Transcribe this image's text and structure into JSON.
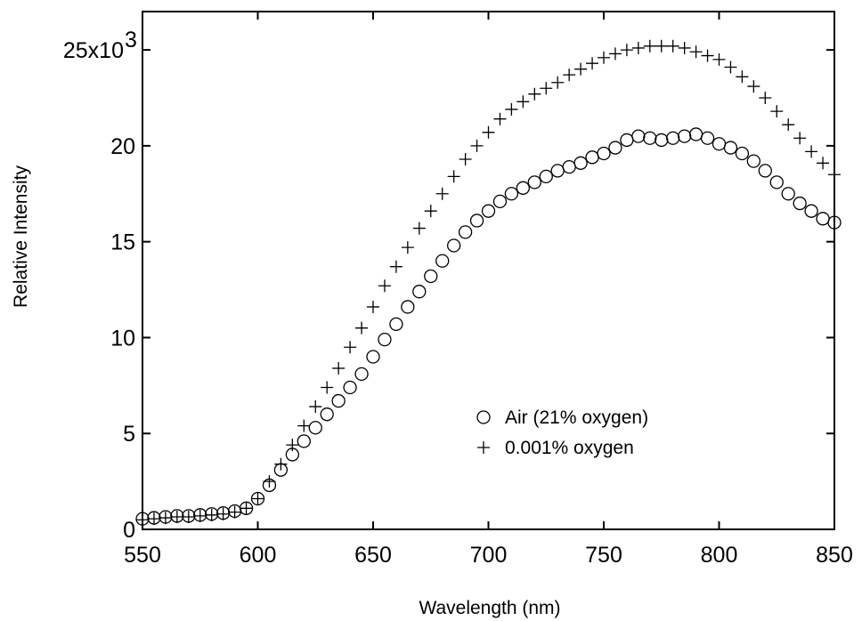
{
  "chart_data": {
    "type": "scatter",
    "title": "",
    "xlabel": "Wavelength (nm)",
    "ylabel": "Relative Intensity",
    "xlim": [
      550,
      850
    ],
    "ylim": [
      0,
      27000
    ],
    "grid": false,
    "legend_position": "lower-right inside plot",
    "x_ticks": [
      550,
      600,
      650,
      700,
      750,
      800,
      850
    ],
    "x_tick_labels": [
      "550",
      "600",
      "650",
      "700",
      "750",
      "800",
      "850"
    ],
    "y_ticks": [
      0,
      5000,
      10000,
      15000,
      20000,
      25000
    ],
    "y_tick_labels": [
      "0",
      "5",
      "10",
      "15",
      "20",
      "25x10"
    ],
    "y_tick_exponent": "3",
    "series": [
      {
        "name": "Air (21% oxygen)",
        "marker": "circle",
        "color": "#000000",
        "x": [
          550,
          555,
          560,
          565,
          570,
          575,
          580,
          585,
          590,
          595,
          600,
          605,
          610,
          615,
          620,
          625,
          630,
          635,
          640,
          645,
          650,
          655,
          660,
          665,
          670,
          675,
          680,
          685,
          690,
          695,
          700,
          705,
          710,
          715,
          720,
          725,
          730,
          735,
          740,
          745,
          750,
          755,
          760,
          765,
          770,
          775,
          780,
          785,
          790,
          795,
          800,
          805,
          810,
          815,
          820,
          825,
          830,
          835,
          840,
          845,
          850
        ],
        "y": [
          550,
          600,
          650,
          700,
          700,
          750,
          800,
          850,
          950,
          1100,
          1600,
          2300,
          3100,
          3900,
          4600,
          5300,
          6000,
          6700,
          7400,
          8100,
          9000,
          9900,
          10700,
          11600,
          12400,
          13200,
          14000,
          14800,
          15500,
          16100,
          16600,
          17100,
          17500,
          17800,
          18100,
          18400,
          18700,
          18900,
          19100,
          19400,
          19600,
          19900,
          20300,
          20500,
          20400,
          20300,
          20400,
          20500,
          20600,
          20400,
          20100,
          19900,
          19600,
          19200,
          18700,
          18100,
          17500,
          17000,
          16600,
          16200,
          16000
        ]
      },
      {
        "name": "0.001% oxygen",
        "marker": "plus",
        "color": "#000000",
        "x": [
          550,
          555,
          560,
          565,
          570,
          575,
          580,
          585,
          590,
          595,
          600,
          605,
          610,
          615,
          620,
          625,
          630,
          635,
          640,
          645,
          650,
          655,
          660,
          665,
          670,
          675,
          680,
          685,
          690,
          695,
          700,
          705,
          710,
          715,
          720,
          725,
          730,
          735,
          740,
          745,
          750,
          755,
          760,
          765,
          770,
          775,
          780,
          785,
          790,
          795,
          800,
          805,
          810,
          815,
          820,
          825,
          830,
          835,
          840,
          845,
          850
        ],
        "y": [
          500,
          550,
          600,
          650,
          650,
          700,
          750,
          800,
          900,
          1100,
          1600,
          2500,
          3400,
          4400,
          5400,
          6400,
          7400,
          8400,
          9500,
          10500,
          11600,
          12700,
          13700,
          14700,
          15700,
          16600,
          17500,
          18400,
          19300,
          20000,
          20700,
          21400,
          21900,
          22300,
          22700,
          23000,
          23300,
          23700,
          24000,
          24300,
          24600,
          24800,
          25000,
          25100,
          25200,
          25200,
          25200,
          25100,
          24900,
          24700,
          24500,
          24100,
          23600,
          23100,
          22500,
          21800,
          21100,
          20400,
          19700,
          19100,
          18500
        ]
      }
    ]
  }
}
